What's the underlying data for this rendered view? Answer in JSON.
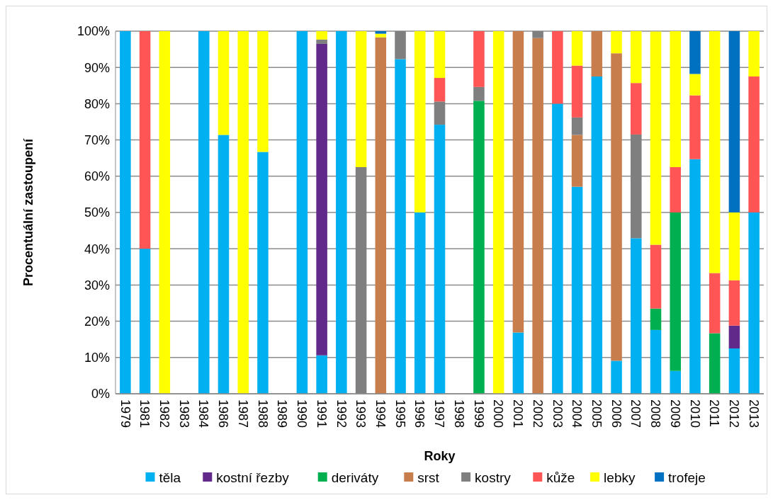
{
  "chart_data": {
    "type": "bar",
    "stacked": true,
    "xlabel": "Roky",
    "ylabel": "Procentuální zastoupení",
    "categories": [
      "1979",
      "1981",
      "1982",
      "1983",
      "1984",
      "1986",
      "1987",
      "1988",
      "1989",
      "1990",
      "1991",
      "1992",
      "1993",
      "1994",
      "1995",
      "1996",
      "1997",
      "1998",
      "1999",
      "2000",
      "2001",
      "2002",
      "2003",
      "2004",
      "2005",
      "2006",
      "2007",
      "2008",
      "2009",
      "2010",
      "2011",
      "2012",
      "2013"
    ],
    "series": [
      {
        "name": "těla",
        "color": "#00b0f0",
        "values": [
          100,
          40,
          0,
          0,
          100,
          71.4,
          0,
          66.7,
          0,
          100,
          10.6,
          100,
          0,
          0,
          92.3,
          50,
          74.2,
          0,
          0,
          0,
          16.9,
          0,
          80,
          57.1,
          87.5,
          9.1,
          42.9,
          17.6,
          6.3,
          64.7,
          0,
          12.5,
          50
        ]
      },
      {
        "name": "kostní řezby",
        "color": "#612a8a",
        "values": [
          0,
          0,
          0,
          0,
          0,
          0,
          0,
          0,
          0,
          0,
          85.9,
          0,
          0,
          0,
          0,
          0,
          0,
          0,
          0,
          0,
          0,
          0,
          0,
          0,
          0,
          0,
          0,
          0,
          0,
          0,
          0,
          6.3,
          0
        ]
      },
      {
        "name": "deriváty",
        "color": "#00b050",
        "values": [
          0,
          0,
          0,
          0,
          0,
          0,
          0,
          0,
          0,
          0,
          0,
          0,
          0,
          0,
          0,
          0,
          0,
          0,
          80.8,
          0,
          0,
          0,
          0,
          0,
          0,
          0,
          0,
          5.9,
          43.7,
          0,
          16.7,
          0,
          0
        ]
      },
      {
        "name": "srst",
        "color": "#c87d4d",
        "values": [
          0,
          0,
          0,
          0,
          0,
          0,
          0,
          0,
          0,
          0,
          0,
          0,
          0,
          98.3,
          0,
          0,
          0,
          0,
          0,
          0,
          83.1,
          98.1,
          0,
          14.3,
          12.5,
          84.8,
          0,
          0,
          0,
          0,
          0,
          0,
          0
        ]
      },
      {
        "name": "kostry",
        "color": "#7f7f7f",
        "values": [
          0,
          0,
          0,
          0,
          0,
          0,
          0,
          0,
          0,
          0,
          1.2,
          0,
          62.5,
          0,
          7.7,
          0,
          6.4,
          0,
          3.8,
          0,
          0,
          1.9,
          0,
          4.8,
          0,
          0,
          28.6,
          0,
          0,
          0,
          0,
          0,
          0
        ]
      },
      {
        "name": "kůže",
        "color": "#ff5555",
        "values": [
          0,
          60,
          0,
          0,
          0,
          0,
          0,
          0,
          0,
          0,
          0,
          0,
          0,
          0,
          0,
          0,
          6.5,
          0,
          15.4,
          0,
          0,
          0,
          20,
          14.3,
          0,
          0,
          14.2,
          17.6,
          12.5,
          17.6,
          16.6,
          12.5,
          37.5
        ]
      },
      {
        "name": "lebky",
        "color": "#ffff00",
        "values": [
          0,
          0,
          100,
          0,
          0,
          28.6,
          100,
          33.3,
          0,
          0,
          2.3,
          0,
          37.5,
          1.0,
          0,
          50,
          12.9,
          0,
          0,
          100,
          0,
          0,
          0,
          9.5,
          0,
          6.1,
          14.3,
          58.8,
          37.5,
          5.9,
          66.7,
          18.7,
          12.5
        ]
      },
      {
        "name": "trofeje",
        "color": "#0070c0",
        "values": [
          0,
          0,
          0,
          0,
          0,
          0,
          0,
          0,
          0,
          0,
          0,
          0,
          0,
          0.7,
          0,
          0,
          0,
          0,
          0,
          0,
          0,
          0,
          0,
          0,
          0,
          0,
          0,
          0,
          0,
          11.8,
          0,
          50,
          0
        ]
      }
    ],
    "ylim": [
      0,
      100
    ],
    "yticks": [
      {
        "value": 0,
        "label": "0%"
      },
      {
        "value": 10,
        "label": "10%"
      },
      {
        "value": 20,
        "label": "20%"
      },
      {
        "value": 30,
        "label": "30%"
      },
      {
        "value": 40,
        "label": "40%"
      },
      {
        "value": 50,
        "label": "50%"
      },
      {
        "value": 60,
        "label": "60%"
      },
      {
        "value": 70,
        "label": "70%"
      },
      {
        "value": 80,
        "label": "80%"
      },
      {
        "value": 90,
        "label": "90%"
      },
      {
        "value": 100,
        "label": "100%"
      }
    ],
    "grid": "y",
    "legend": "bottom"
  }
}
